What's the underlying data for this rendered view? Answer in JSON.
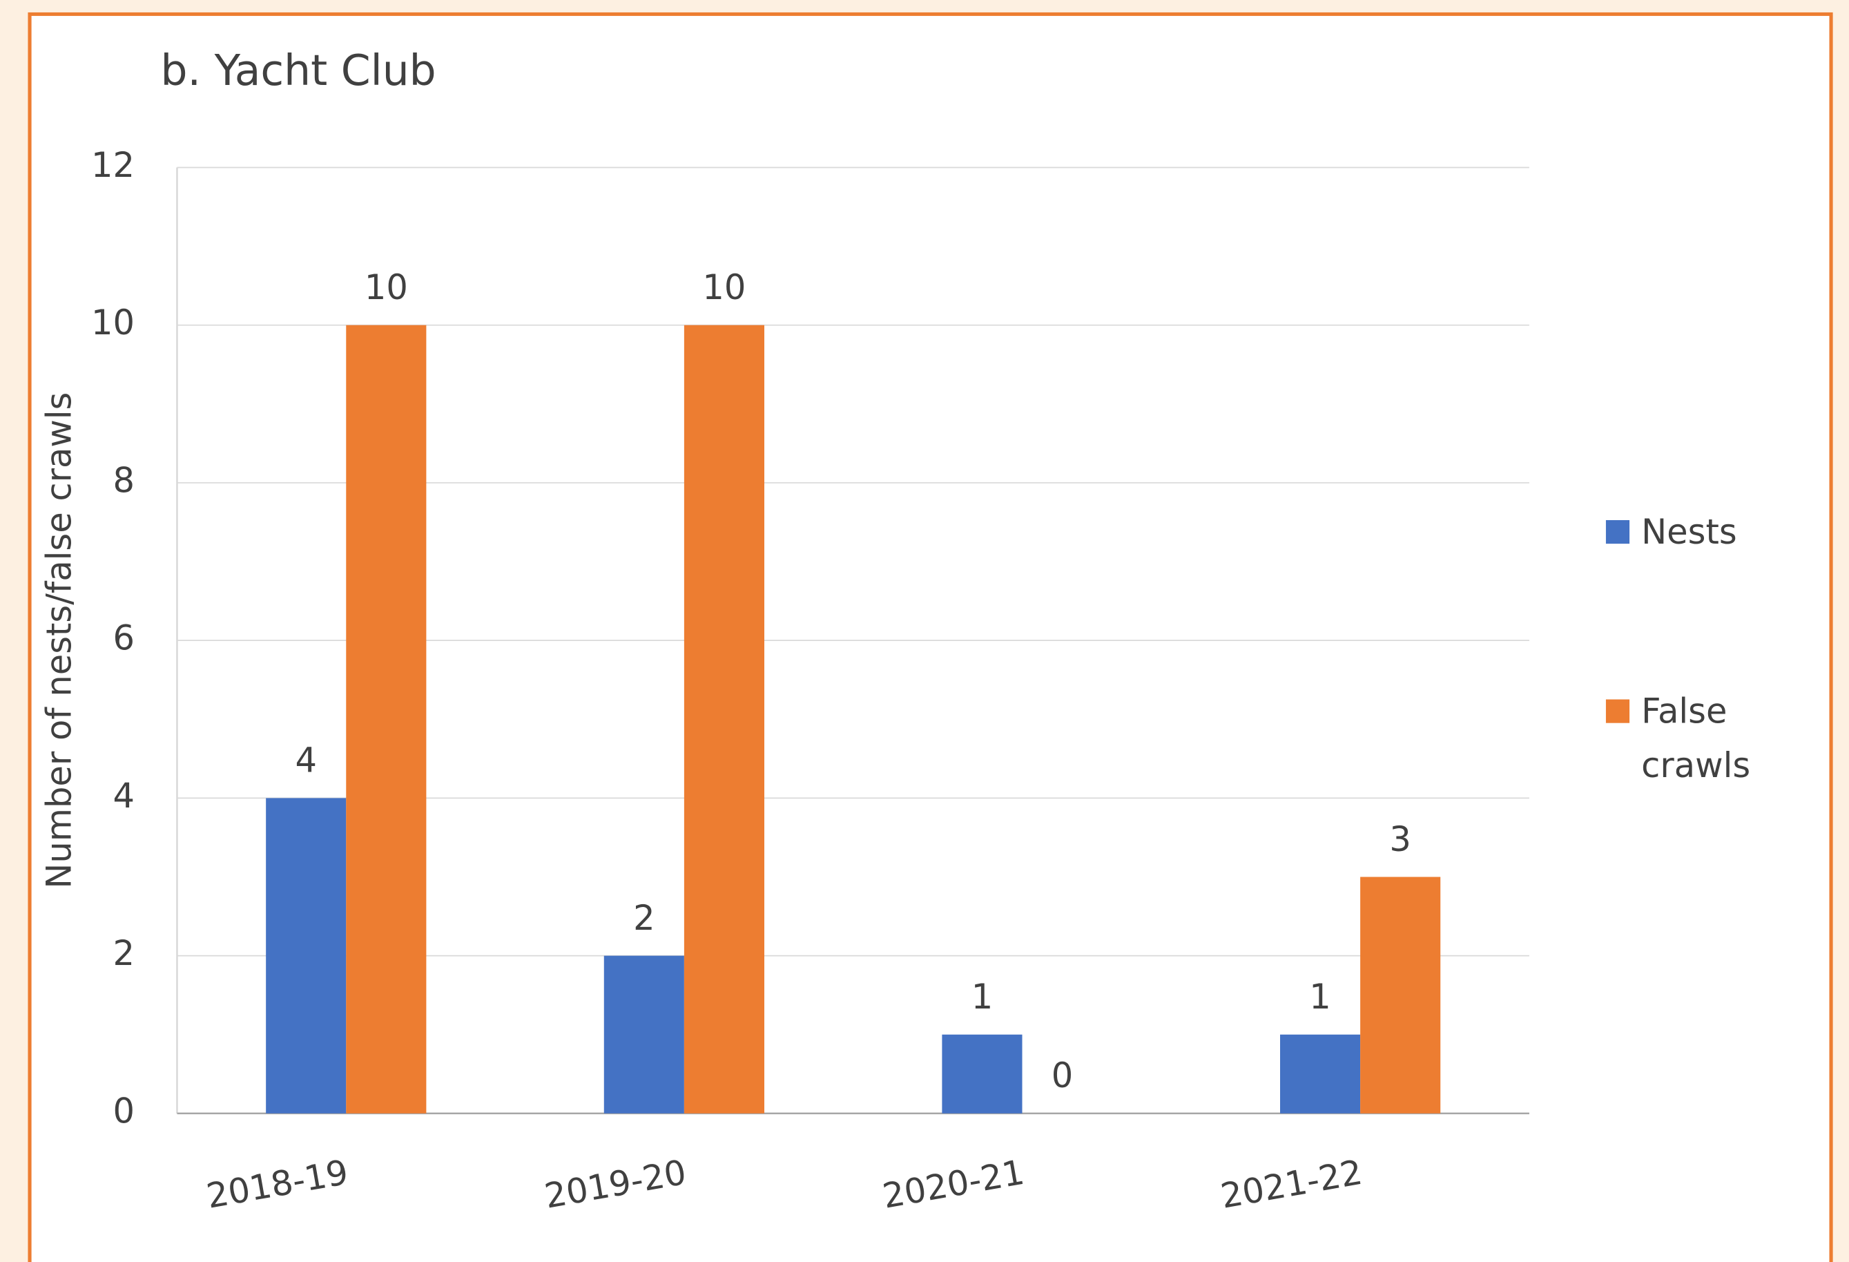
{
  "chart_data": {
    "type": "bar",
    "title": "b. Yacht Club",
    "y_label": "Number of nests/false crawls",
    "categories": [
      "2018-19",
      "2019-20",
      "2020-21",
      "2021-22"
    ],
    "series": [
      {
        "name": "Nests",
        "color": "#4472c4",
        "values": [
          4,
          2,
          1,
          1
        ]
      },
      {
        "name": "False crawls",
        "color": "#ed7d31",
        "values": [
          10,
          10,
          0,
          3
        ]
      }
    ],
    "ylim": [
      0,
      12
    ],
    "yticks": [
      0,
      2,
      4,
      6,
      8,
      10,
      12
    ],
    "grid": true,
    "legend": "right"
  }
}
